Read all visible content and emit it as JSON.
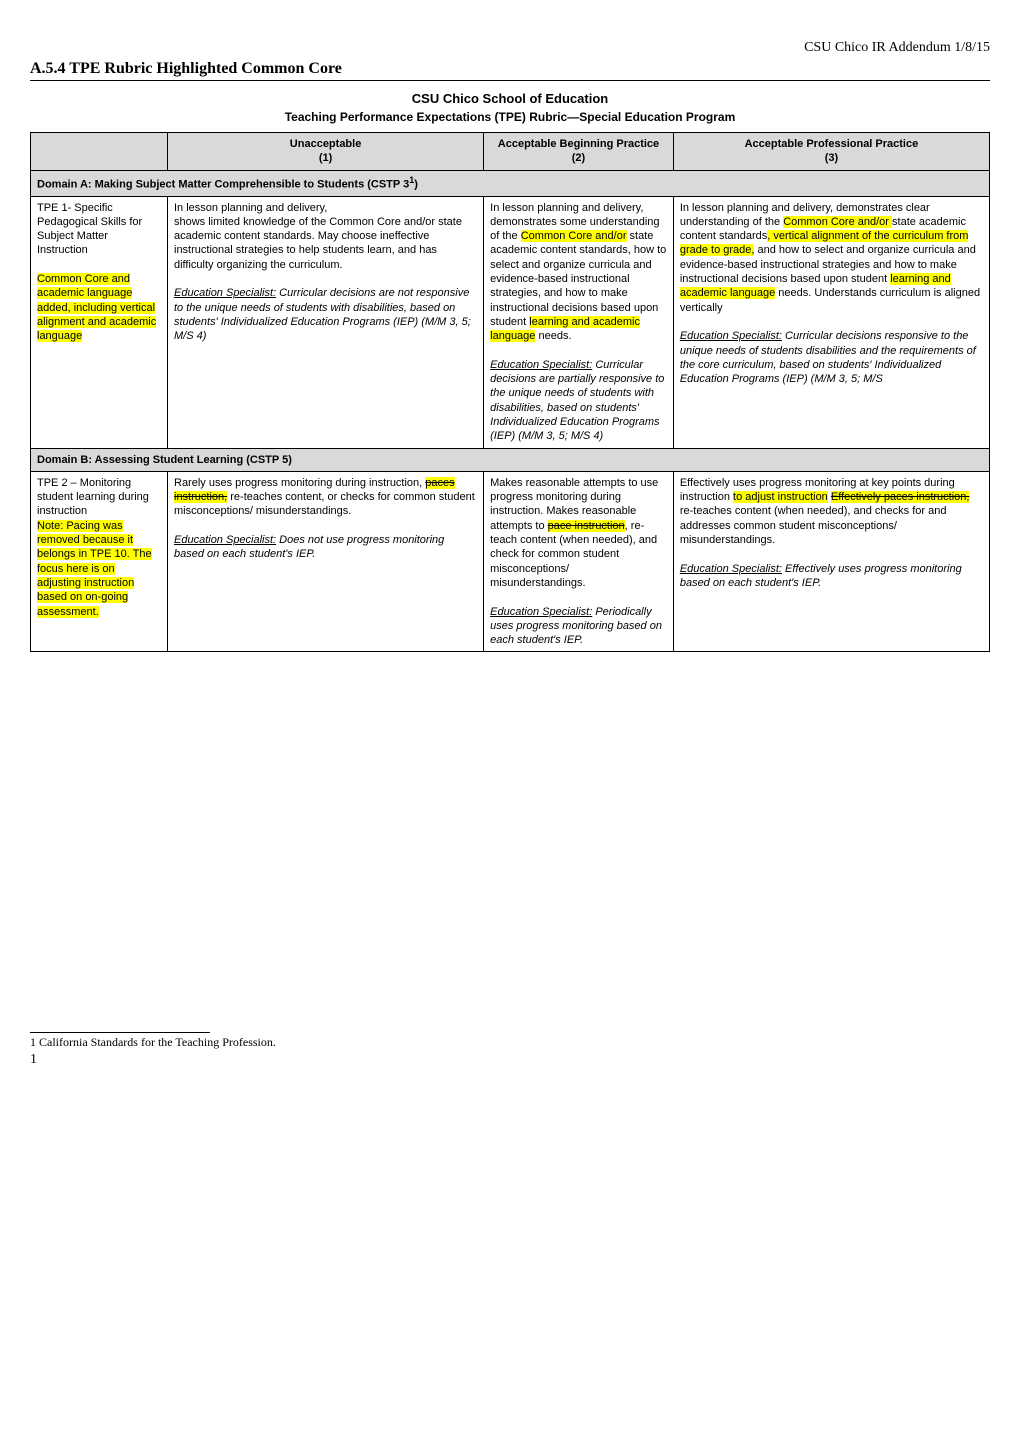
{
  "header": {
    "right": "CSU Chico IR Addendum  1/8/15",
    "title": "A.5.4 TPE Rubric Highlighted Common Core",
    "school": "CSU Chico School of Education",
    "program": "Teaching Performance Expectations (TPE) Rubric—Special Education Program"
  },
  "columns": {
    "c0": "",
    "c1_a": "Unacceptable",
    "c1_b": "(1)",
    "c2_a": "Acceptable Beginning Practice",
    "c2_b": "(2)",
    "c3_a": "Acceptable Professional Practice",
    "c3_b": "(3)"
  },
  "domainA": {
    "label_a": "Domain A: Making Subject Matter Comprehensible to Students (CSTP 3",
    "label_sup": "1",
    "label_b": ")",
    "tpe1": {
      "name_a": "TPE 1- Specific Pedagogical Skills for Subject Matter Instruction",
      "name_hl": "Common Core and academic language added, including vertical alignment and academic language",
      "col1_a": "In lesson planning and delivery,",
      "col1_b": "shows limited knowledge of the Common Core and/or state academic content standards. May choose ineffective instructional strategies to help students learn, and has difficulty organizing the curriculum.",
      "col1_es_label": "Education Specialist:",
      "col1_es": "  Curricular decisions are not responsive to the unique needs of students with disabilities, based on students' Individualized Education Programs (IEP) (M/M 3, 5; M/S 4)",
      "col2_a": "In lesson planning and delivery, demonstrates some understanding of the ",
      "col2_hl1": "Common Core and/or",
      "col2_b": " state academic content standards, how to select and organize curricula and evidence-based instructional strategies, and how to make instructional decisions based upon student ",
      "col2_hl2": "learning and academic language",
      "col2_c": " needs.",
      "col2_es_label": "Education Specialist:",
      "col2_es": " Curricular decisions are partially responsive to the unique needs of students with disabilities, based on students' Individualized Education Programs (IEP) (M/M 3, 5; M/S 4)",
      "col3_a": "In lesson planning and delivery, demonstrates clear understanding of the ",
      "col3_hl1": "Common Core and/or ",
      "col3_b": "state academic content standards",
      "col3_hl2": ", vertical alignment of the curriculum from grade to grade,",
      "col3_c": " and how to select and organize curricula and evidence-based instructional strategies and how to make instructional decisions based upon student ",
      "col3_hl3": "learning and academic language",
      "col3_d": " needs. Understands curriculum is aligned vertically",
      "col3_es_label": "Education Specialist:",
      "col3_es": "  Curricular decisions responsive to the unique needs of students disabilities and the requirements of the core curriculum, based on students' Individualized Education Programs (IEP) (M/M 3, 5; M/S"
    }
  },
  "domainB": {
    "label": "Domain B: Assessing Student Learning (CSTP 5)",
    "tpe2": {
      "name_a": "TPE 2 – Monitoring student learning during instruction",
      "name_hl": "Note: Pacing was removed because it belongs in TPE 10. The focus here is on adjusting instruction based on on-going assessment.",
      "col1_a": "Rarely uses progress monitoring during instruction, ",
      "col1_strike": "paces instruction,",
      "col1_b": " re-teaches content, or checks for common student misconceptions/ misunderstandings.",
      "col1_es_label": "Education Specialist:",
      "col1_es": "  Does not use progress monitoring based on each student's IEP.",
      "col2_a": "Makes reasonable attempts to use progress monitoring during instruction. Makes reasonable attempts to ",
      "col2_strike": "pace instruction",
      "col2_b": ", re-teach content (when needed), and check for common student misconceptions/ misunderstandings.",
      "col2_es_label": "Education Specialist:",
      "col2_es": " Periodically uses progress monitoring based on each student's IEP.",
      "col3_a": "Effectively uses progress monitoring at key points during instruction ",
      "col3_hl1": "to adjust instruction",
      "col3_b": " ",
      "col3_strike": "Effectively paces instruction,",
      "col3_c": " re-teaches content (when needed), and checks for and addresses common student misconceptions/ misunderstandings.",
      "col3_es_label": "Education Specialist:",
      "col3_es": "  Effectively uses progress monitoring based on each student's IEP."
    }
  },
  "footnote": {
    "num": "1",
    "text": " California Standards for the Teaching Profession.",
    "page": "1"
  }
}
